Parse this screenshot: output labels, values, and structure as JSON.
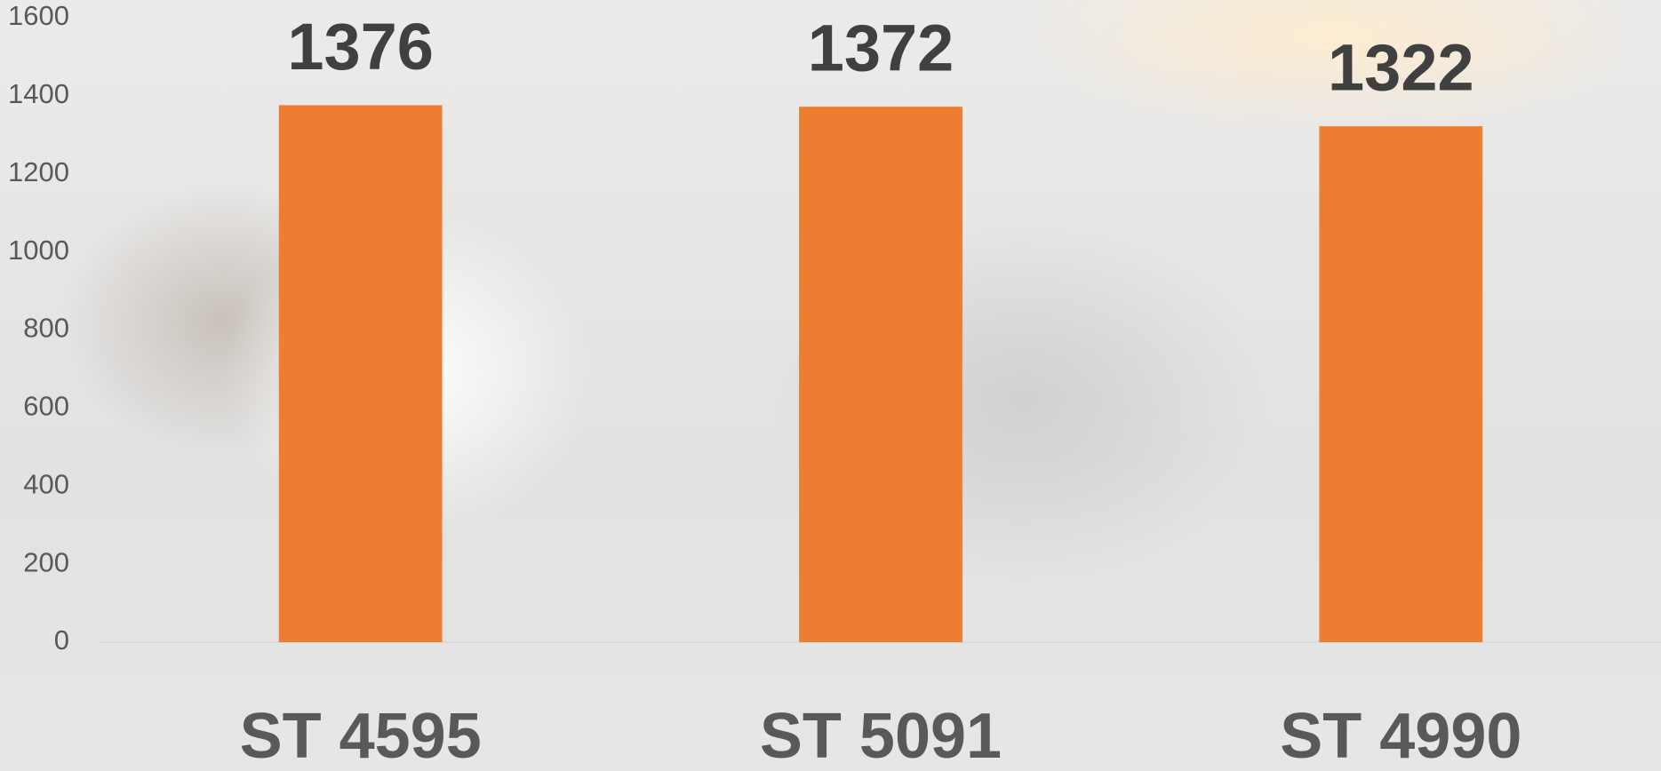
{
  "chart_data": {
    "type": "bar",
    "categories": [
      "ST 4595",
      "ST 5091",
      "ST 4990"
    ],
    "values": [
      1376,
      1372,
      1322
    ],
    "color": "#ed7d31",
    "ylim": [
      0,
      1600
    ],
    "yticks": [
      0,
      200,
      400,
      600,
      800,
      1000,
      1200,
      1400,
      1600
    ],
    "grid": false
  }
}
